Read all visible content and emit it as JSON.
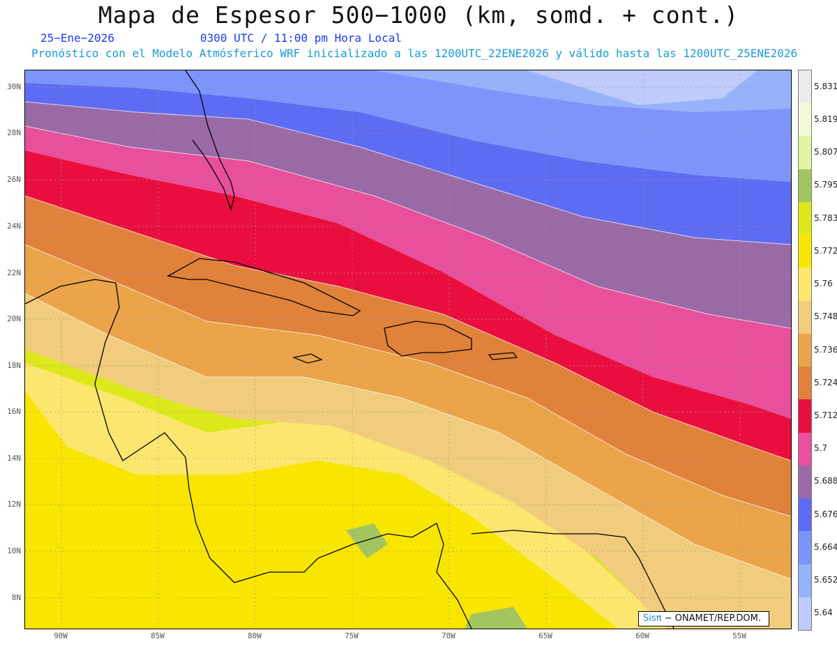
{
  "header": {
    "title": "Mapa de Espesor 500−1000 (km, somd. + cont.)",
    "date": "25−Ene−2026",
    "time": "0300 UTC / 11:00 pm Hora Local",
    "forecast": "Pronóstico con el Modelo Atmósferico WRF inicializado a las 1200UTC_22ENE2026 y válido hasta las  1200UTC_25ENE2026"
  },
  "axes": {
    "lat_labels": [
      "30N",
      "28N",
      "26N",
      "24N",
      "22N",
      "20N",
      "18N",
      "16N",
      "14N",
      "12N",
      "10N",
      "8N"
    ],
    "lon_labels": [
      "90W",
      "85W",
      "80W",
      "75W",
      "70W",
      "65W",
      "60W",
      "55W"
    ]
  },
  "colorbar": {
    "labels": [
      "5.831",
      "5.819",
      "5.807",
      "5.795",
      "5.783",
      "5.772",
      "5.76",
      "5.748",
      "5.736",
      "5.724",
      "5.712",
      "5.7",
      "5.688",
      "5.676",
      "5.664",
      "5.652",
      "5.64"
    ],
    "colors": [
      "#ebebeb",
      "#f5f8d6",
      "#e2f5a2",
      "#a3c55f",
      "#dde81c",
      "#f9e600",
      "#fde66f",
      "#f1cc7c",
      "#eba44a",
      "#e0823a",
      "#ea0e3f",
      "#e84f9c",
      "#9a6aa6",
      "#5e6cf4",
      "#7d95fb",
      "#97b2fb",
      "#bfcbfb"
    ]
  },
  "credit": {
    "brand": "Sisπ",
    "org": " − ONAMET/REP.DOM."
  }
}
